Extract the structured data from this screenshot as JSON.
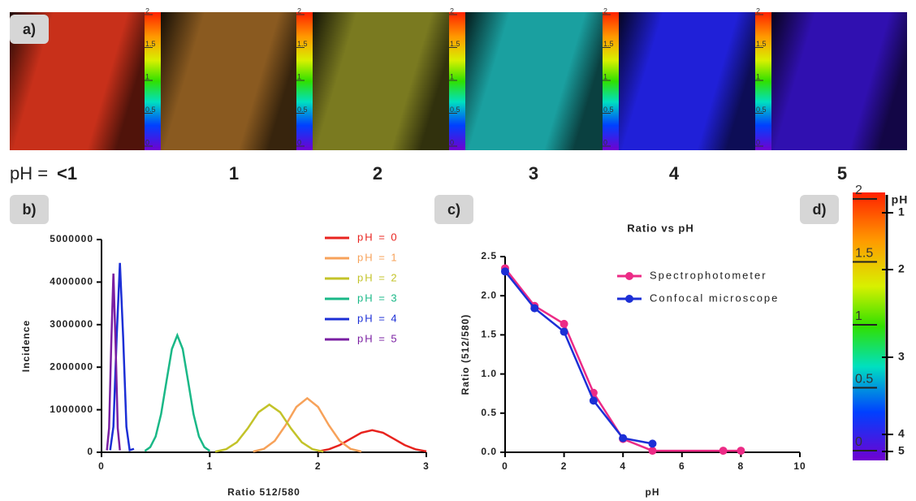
{
  "panel_labels": [
    "a)",
    "b)",
    "c)",
    "d)"
  ],
  "ph_labels": {
    "prefix": "pH = ",
    "values": [
      "<1",
      "1",
      "2",
      "3",
      "4",
      "5"
    ]
  },
  "colorbar": {
    "ticks": [
      0,
      0.5,
      1,
      1.5,
      2
    ]
  },
  "ph_scale": {
    "label": "pH",
    "ticks": [
      1,
      2,
      3,
      4,
      5
    ]
  },
  "chart_data": [
    {
      "type": "line",
      "xlabel": "Ratio 512/580",
      "ylabel": "Incidence",
      "xlim": [
        0,
        3
      ],
      "xticks": [
        0,
        1,
        2,
        3
      ],
      "ylim": [
        0,
        5000000
      ],
      "yticks": [
        0,
        1000000,
        2000000,
        3000000,
        4000000,
        5000000
      ],
      "legend": "upper right",
      "series": [
        {
          "name": "pH = 0",
          "color": "#e8231e",
          "x": [
            2.0,
            2.1,
            2.2,
            2.3,
            2.4,
            2.5,
            2.6,
            2.7,
            2.8,
            2.9,
            3.0
          ],
          "values": [
            23000,
            70000,
            169000,
            316000,
            459000,
            520000,
            459000,
            316000,
            169000,
            70000,
            23000
          ]
        },
        {
          "name": "pH = 1",
          "color": "#f7a25a",
          "x": [
            1.4,
            1.5,
            1.6,
            1.7,
            1.8,
            1.9,
            2.0,
            2.1,
            2.2,
            2.3,
            2.4
          ],
          "values": [
            17000,
            80000,
            267000,
            635000,
            1067000,
            1270000,
            1067000,
            635000,
            267000,
            80000,
            17000
          ]
        },
        {
          "name": "pH = 2",
          "color": "#c3c329",
          "x": [
            1.05,
            1.15,
            1.25,
            1.35,
            1.45,
            1.55,
            1.65,
            1.75,
            1.85,
            1.95,
            2.05
          ],
          "values": [
            15000,
            71000,
            235000,
            560000,
            941000,
            1120000,
            941000,
            560000,
            235000,
            71000,
            15000
          ]
        },
        {
          "name": "pH = 3",
          "color": "#1ab887",
          "x": [
            0.4,
            0.45,
            0.5,
            0.55,
            0.6,
            0.65,
            0.7,
            0.75,
            0.8,
            0.85,
            0.9,
            0.95,
            1.0
          ],
          "values": [
            30000,
            121000,
            371000,
            894000,
            1669000,
            2426000,
            2750000,
            2426000,
            1669000,
            894000,
            371000,
            121000,
            30000
          ]
        },
        {
          "name": "pH = 4",
          "color": "#1c2fd6",
          "x": [
            0.08,
            0.11,
            0.14,
            0.17,
            0.2,
            0.23,
            0.26,
            0.3
          ],
          "values": [
            49000,
            601000,
            2701000,
            4450000,
            2701000,
            601000,
            49000,
            80000
          ]
        },
        {
          "name": "pH = 5",
          "color": "#7a1fa2",
          "x": [
            0.05,
            0.07,
            0.09,
            0.11,
            0.13,
            0.15,
            0.17
          ],
          "values": [
            46000,
            567000,
            2549000,
            4200000,
            2549000,
            567000,
            46000
          ]
        }
      ]
    },
    {
      "type": "line",
      "title": "Ratio vs pH",
      "xlabel": "pH",
      "ylabel": "Ratio (512/580)",
      "xlim": [
        0,
        10
      ],
      "xticks": [
        0,
        2,
        4,
        6,
        8,
        10
      ],
      "ylim": [
        0,
        2.5
      ],
      "yticks": [
        {
          "value": 0,
          "label": "0.0"
        },
        {
          "value": 0.5,
          "label": "0.5"
        },
        {
          "value": 1,
          "label": "1.0"
        },
        {
          "value": 1.5,
          "label": "1.5"
        },
        {
          "value": 2,
          "label": "2.0"
        },
        {
          "value": 2.5,
          "label": "2.5"
        }
      ],
      "legend": "upper right",
      "markers": true,
      "series": [
        {
          "name": "Spectrophotometer",
          "color": "#ec2b86",
          "x": [
            0,
            1,
            2,
            3,
            4,
            5,
            7.4,
            8
          ],
          "values": [
            2.35,
            1.87,
            1.64,
            0.76,
            0.17,
            0.02,
            0.02,
            0.02
          ]
        },
        {
          "name": "Confocal microscope",
          "color": "#1c2fd6",
          "x": [
            0,
            1,
            2,
            3,
            4,
            5
          ],
          "values": [
            2.31,
            1.84,
            1.54,
            0.66,
            0.18,
            0.11
          ]
        }
      ]
    }
  ]
}
